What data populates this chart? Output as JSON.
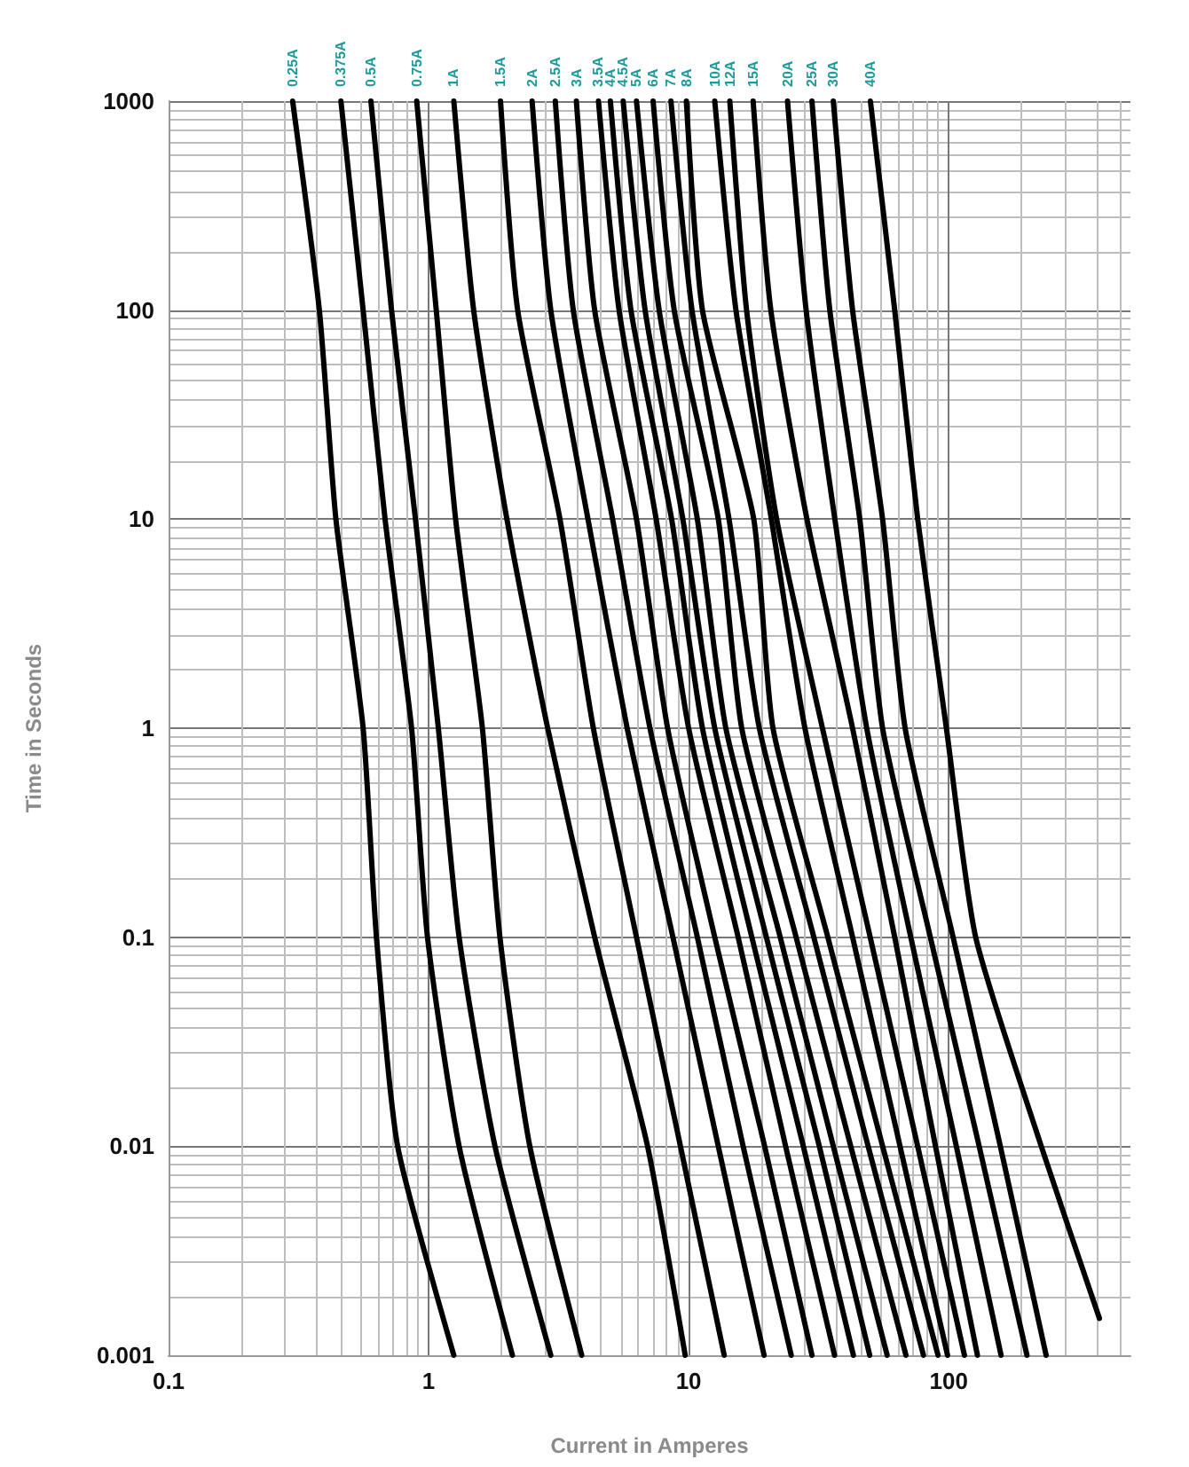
{
  "chart_data": {
    "type": "line",
    "xlabel": "Current in Amperes",
    "ylabel": "Time in Seconds",
    "log": "xy",
    "grid": true,
    "legend": false,
    "marker": "none",
    "line_style": "solid",
    "xlim": [
      0.1,
      500
    ],
    "xticks": [
      0.1,
      1,
      10,
      100
    ],
    "ylim": [
      0.001,
      1000
    ],
    "yticks": [
      0.001,
      0.01,
      0.1,
      1,
      10,
      100,
      1000
    ],
    "series": [
      {
        "name": "0.25A",
        "color": "#000000",
        "x": [
          0.3,
          0.38,
          0.44,
          0.56,
          0.63,
          0.76,
          1.25
        ],
        "values": [
          1000,
          100,
          10,
          1,
          0.1,
          0.01,
          0.001
        ]
      },
      {
        "name": "0.375A",
        "color": "#000000",
        "x": [
          0.46,
          0.56,
          0.68,
          0.86,
          0.99,
          1.31,
          2.1
        ],
        "values": [
          1000,
          100,
          10,
          1,
          0.1,
          0.01,
          0.001
        ]
      },
      {
        "name": "0.5A",
        "color": "#000000",
        "x": [
          0.6,
          0.72,
          0.89,
          1.09,
          1.31,
          1.8,
          2.95
        ],
        "values": [
          1000,
          100,
          10,
          1,
          0.1,
          0.01,
          0.001
        ]
      },
      {
        "name": "0.75A",
        "color": "#000000",
        "x": [
          0.9,
          1.07,
          1.27,
          1.61,
          1.88,
          2.45,
          3.88
        ],
        "values": [
          1000,
          100,
          10,
          1,
          0.1,
          0.01,
          0.001
        ]
      },
      {
        "name": "1A",
        "color": "#000000",
        "x": [
          1.25,
          1.49,
          2.0,
          2.87,
          4.35,
          6.95,
          9.7
        ],
        "values": [
          1000,
          100,
          10,
          1,
          0.1,
          0.01,
          0.001
        ]
      },
      {
        "name": "1.5A",
        "color": "#000000",
        "x": [
          1.89,
          2.2,
          3.2,
          4.3,
          6.3,
          9.3,
          13.7
        ],
        "values": [
          1000,
          100,
          10,
          1,
          0.1,
          0.01,
          0.001
        ]
      },
      {
        "name": "2A",
        "color": "#000000",
        "x": [
          2.5,
          2.95,
          4.1,
          5.8,
          8.7,
          13,
          19.5
        ],
        "values": [
          1000,
          100,
          10,
          1,
          0.1,
          0.01,
          0.001
        ]
      },
      {
        "name": "2.5A",
        "color": "#000000",
        "x": [
          3.07,
          3.6,
          5.1,
          7.1,
          10.8,
          16.2,
          24.8
        ],
        "values": [
          1000,
          100,
          10,
          1,
          0.1,
          0.01,
          0.001
        ]
      },
      {
        "name": "3A",
        "color": "#000000",
        "x": [
          3.7,
          4.35,
          6.3,
          8.3,
          12.6,
          19.6,
          29.8
        ],
        "values": [
          1000,
          100,
          10,
          1,
          0.1,
          0.01,
          0.001
        ]
      },
      {
        "name": "3.5A",
        "color": "#000000",
        "x": [
          4.5,
          5.4,
          7.5,
          10,
          15.5,
          23.6,
          36.4
        ],
        "values": [
          1000,
          100,
          10,
          1,
          0.1,
          0.01,
          0.001
        ]
      },
      {
        "name": "4A",
        "color": "#000000",
        "x": [
          5.0,
          6.0,
          8.6,
          11.3,
          17.5,
          27.6,
          43
        ],
        "values": [
          1000,
          100,
          10,
          1,
          0.1,
          0.01,
          0.001
        ]
      },
      {
        "name": "4.5A",
        "color": "#000000",
        "x": [
          5.6,
          6.8,
          9.5,
          12.6,
          19.9,
          31.8,
          49.7
        ],
        "values": [
          1000,
          100,
          10,
          1,
          0.1,
          0.01,
          0.001
        ]
      },
      {
        "name": "5A",
        "color": "#000000",
        "x": [
          6.3,
          7.7,
          10.8,
          13.9,
          22.5,
          36,
          58
        ],
        "values": [
          1000,
          100,
          10,
          1,
          0.1,
          0.01,
          0.001
        ]
      },
      {
        "name": "6A",
        "color": "#000000",
        "x": [
          7.3,
          8.8,
          13,
          16,
          25.9,
          42,
          68.5
        ],
        "values": [
          1000,
          100,
          10,
          1,
          0.1,
          0.01,
          0.001
        ]
      },
      {
        "name": "7A",
        "color": "#000000",
        "x": [
          8.55,
          10.3,
          14.3,
          18.7,
          30.3,
          49,
          80
        ],
        "values": [
          1000,
          100,
          10,
          1,
          0.1,
          0.01,
          0.001
        ]
      },
      {
        "name": "8A",
        "color": "#000000",
        "x": [
          9.8,
          11.3,
          17.8,
          21.1,
          34.3,
          55.7,
          91
        ],
        "values": [
          1000,
          100,
          10,
          1,
          0.1,
          0.01,
          0.001
        ]
      },
      {
        "name": "10A",
        "color": "#000000",
        "x": [
          12.6,
          15.2,
          20.8,
          28,
          42.7,
          65,
          99
        ],
        "values": [
          1000,
          100,
          10,
          1,
          0.1,
          0.01,
          0.001
        ]
      },
      {
        "name": "12A",
        "color": "#000000",
        "x": [
          14.4,
          16.7,
          21.8,
          32.7,
          49.9,
          76,
          115
        ],
        "values": [
          1000,
          100,
          10,
          1,
          0.1,
          0.01,
          0.001
        ]
      },
      {
        "name": "15A",
        "color": "#000000",
        "x": [
          17.7,
          20.7,
          28.5,
          42.7,
          62,
          89,
          129
        ],
        "values": [
          1000,
          100,
          10,
          1,
          0.1,
          0.01,
          0.001
        ]
      },
      {
        "name": "20A",
        "color": "#000000",
        "x": [
          24,
          28.3,
          36.5,
          48.4,
          71.5,
          107,
          159
        ],
        "values": [
          1000,
          100,
          10,
          1,
          0.1,
          0.01,
          0.001
        ]
      },
      {
        "name": "25A",
        "color": "#000000",
        "x": [
          29.8,
          34.9,
          45.5,
          55.7,
          85,
          131,
          200
        ],
        "values": [
          1000,
          100,
          10,
          1,
          0.1,
          0.01,
          0.001
        ]
      },
      {
        "name": "30A",
        "color": "#000000",
        "x": [
          36,
          42.7,
          55.7,
          68,
          104,
          158,
          237
        ],
        "values": [
          1000,
          100,
          10,
          1,
          0.1,
          0.01,
          0.001
        ]
      },
      {
        "name": "40A",
        "color": "#000000",
        "x": [
          50,
          62,
          76,
          98,
          127,
          227,
          380
        ],
        "values": [
          1000,
          100,
          10,
          1,
          0.1,
          0.01,
          0.0015
        ]
      }
    ]
  }
}
